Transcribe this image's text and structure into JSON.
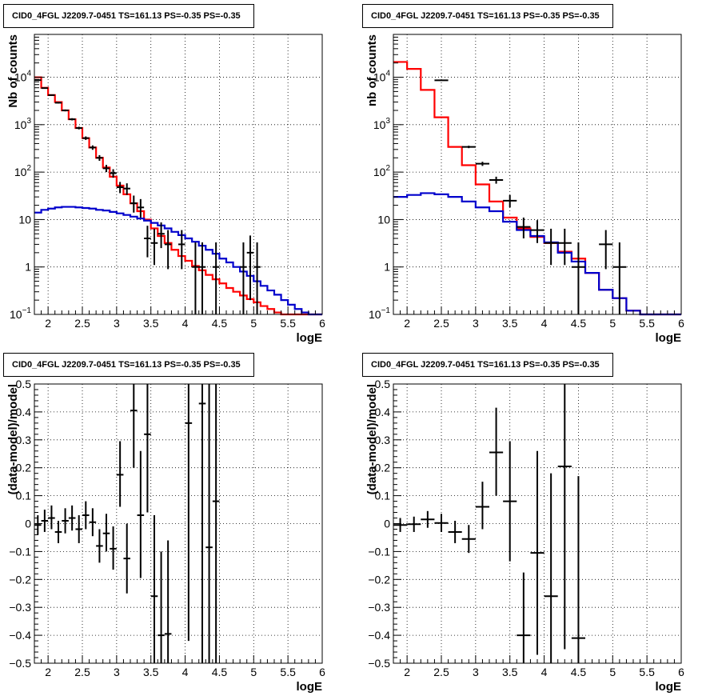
{
  "chart_data": [
    {
      "id": "p1",
      "type": "line",
      "title": "CID0_4FGL J2209.7-0451 TS=161.13 PS=-0.35 PS=-0.35",
      "xlabel": "logE",
      "ylabel": "Nb of counts",
      "log_y": true,
      "xlim": [
        1.8,
        6.0
      ],
      "ylim": [
        0.1,
        80000
      ],
      "x_ticks": [
        "2",
        "2.5",
        "3",
        "3.5",
        "4",
        "4.5",
        "5",
        "5.5",
        "6"
      ],
      "y_ticks": [
        {
          "value": 0.1,
          "base": "10",
          "exp": "−1",
          "label": ""
        },
        {
          "value": 1,
          "base": "",
          "exp": "",
          "label": "1"
        },
        {
          "value": 10,
          "base": "",
          "exp": "",
          "label": "10"
        },
        {
          "value": 100,
          "base": "10",
          "exp": "2",
          "label": ""
        },
        {
          "value": 1000,
          "base": "10",
          "exp": "3",
          "label": ""
        },
        {
          "value": 10000,
          "base": "10",
          "exp": "4",
          "label": ""
        }
      ],
      "grid": true,
      "bin_edges": [
        1.8,
        1.9,
        2.0,
        2.1,
        2.2,
        2.3,
        2.4,
        2.5,
        2.6,
        2.7,
        2.8,
        2.9,
        3.0,
        3.1,
        3.2,
        3.3,
        3.4,
        3.5,
        3.6,
        3.7,
        3.8,
        3.9,
        4.0,
        4.1,
        4.2,
        4.3,
        4.4,
        4.5,
        4.6,
        4.7,
        4.8,
        4.9,
        5.0,
        5.1,
        5.2,
        5.3,
        5.4,
        5.5,
        5.6,
        5.7,
        5.8,
        5.9,
        6.0
      ],
      "series": [
        {
          "color": "#ff0000",
          "values": [
            10000,
            6000,
            4200,
            3000,
            2000,
            1300,
            850,
            520,
            330,
            200,
            125,
            80,
            52,
            34,
            22,
            15,
            10,
            6.5,
            4.5,
            3.2,
            2.3,
            1.7,
            1.35,
            1.05,
            0.85,
            0.68,
            0.55,
            0.45,
            0.36,
            0.3,
            0.25,
            0.21,
            0.18,
            0.15,
            0.13,
            0.11,
            0.1,
            0.1,
            0.1,
            0.1,
            0.1,
            0.1
          ]
        },
        {
          "color": "#0000cc",
          "values": [
            14,
            16,
            17,
            18,
            18.5,
            18.5,
            18,
            17.5,
            17,
            16,
            15.5,
            14.5,
            13.5,
            12.5,
            11.5,
            10.5,
            9.5,
            8.5,
            7.5,
            6.5,
            5.5,
            4.7,
            4.0,
            3.4,
            2.8,
            2.3,
            1.9,
            1.5,
            1.25,
            1.0,
            0.8,
            0.65,
            0.5,
            0.4,
            0.32,
            0.26,
            0.2,
            0.16,
            0.13,
            0.11,
            0.1,
            0.1
          ]
        }
      ],
      "points": [
        {
          "x": 1.85,
          "y": 8700,
          "lo": 8500,
          "hi": 8900
        },
        {
          "x": 1.95,
          "y": 5900,
          "lo": 5750,
          "hi": 6050
        },
        {
          "x": 2.05,
          "y": 4200,
          "lo": 4080,
          "hi": 4330
        },
        {
          "x": 2.15,
          "y": 2900,
          "lo": 2800,
          "hi": 3010
        },
        {
          "x": 2.25,
          "y": 2000,
          "lo": 1910,
          "hi": 2090
        },
        {
          "x": 2.35,
          "y": 1300,
          "lo": 1230,
          "hi": 1370
        },
        {
          "x": 2.45,
          "y": 850,
          "lo": 795,
          "hi": 905
        },
        {
          "x": 2.55,
          "y": 520,
          "lo": 477,
          "hi": 565
        },
        {
          "x": 2.65,
          "y": 330,
          "lo": 295,
          "hi": 366
        },
        {
          "x": 2.75,
          "y": 200,
          "lo": 173,
          "hi": 228
        },
        {
          "x": 2.85,
          "y": 120,
          "lo": 100,
          "hi": 142
        },
        {
          "x": 2.95,
          "y": 95,
          "lo": 76,
          "hi": 115
        },
        {
          "x": 3.05,
          "y": 48,
          "lo": 36,
          "hi": 62
        },
        {
          "x": 3.15,
          "y": 45,
          "lo": 33,
          "hi": 58
        },
        {
          "x": 3.25,
          "y": 22,
          "lo": 14,
          "hi": 32
        },
        {
          "x": 3.35,
          "y": 18,
          "lo": 11,
          "hi": 27
        },
        {
          "x": 3.45,
          "y": 4,
          "lo": 1.6,
          "hi": 7.4
        },
        {
          "x": 3.55,
          "y": 3.2,
          "lo": 1.1,
          "hi": 6.4
        },
        {
          "x": 3.65,
          "y": 5,
          "lo": 2.5,
          "hi": 8.7
        },
        {
          "x": 3.75,
          "y": 3,
          "lo": 0.9,
          "hi": 6.0
        },
        {
          "x": 3.95,
          "y": 3,
          "lo": 0.9,
          "hi": 6.0
        },
        {
          "x": 4.15,
          "y": 1,
          "lo": 0.1,
          "hi": 3.3
        },
        {
          "x": 4.25,
          "y": 1,
          "lo": 0.1,
          "hi": 3.3
        },
        {
          "x": 4.45,
          "y": 1,
          "lo": 0.1,
          "hi": 3.3
        },
        {
          "x": 4.85,
          "y": 1,
          "lo": 0.1,
          "hi": 3.3
        },
        {
          "x": 4.95,
          "y": 2,
          "lo": 0.2,
          "hi": 4.6
        },
        {
          "x": 5.05,
          "y": 1,
          "lo": 0.1,
          "hi": 3.3
        }
      ]
    },
    {
      "id": "p2",
      "type": "line",
      "title": "CID0_4FGL J2209.7-0451 TS=161.13 PS=-0.35 PS=-0.35",
      "xlabel": "logE",
      "ylabel": "nb of counts",
      "log_y": true,
      "xlim": [
        1.8,
        6.0
      ],
      "ylim": [
        0.1,
        80000
      ],
      "x_ticks": [
        "2",
        "2.5",
        "3",
        "3.5",
        "4",
        "4.5",
        "5",
        "5.5",
        "6"
      ],
      "y_ticks": [
        {
          "value": 0.1,
          "base": "10",
          "exp": "−1",
          "label": ""
        },
        {
          "value": 1,
          "base": "",
          "exp": "",
          "label": "1"
        },
        {
          "value": 10,
          "base": "",
          "exp": "",
          "label": "10"
        },
        {
          "value": 100,
          "base": "10",
          "exp": "2",
          "label": ""
        },
        {
          "value": 1000,
          "base": "10",
          "exp": "3",
          "label": ""
        },
        {
          "value": 10000,
          "base": "10",
          "exp": "4",
          "label": ""
        }
      ],
      "grid": true,
      "bin_edges": [
        1.8,
        2.0,
        2.2,
        2.4,
        2.6,
        2.8,
        3.0,
        3.2,
        3.4,
        3.6,
        3.8,
        4.0,
        4.2,
        4.4,
        4.6,
        4.8,
        5.0,
        5.2,
        5.4,
        5.6,
        5.8,
        6.0
      ],
      "series": [
        {
          "color": "#ff0000",
          "values": [
            21000,
            15000,
            5400,
            1430,
            340,
            140,
            55,
            24,
            11,
            6.5,
            4.3,
            3.2,
            2.1,
            1.5,
            0.75,
            0.33,
            0.22,
            0.12,
            0.1,
            0.1,
            0.1
          ]
        },
        {
          "color": "#0000cc",
          "values": [
            30,
            33,
            36,
            34,
            30,
            24,
            18,
            15,
            9,
            6,
            4.5,
            3.3,
            2.0,
            1.3,
            0.75,
            0.33,
            0.22,
            0.12,
            0.1,
            0.1,
            0.1
          ]
        }
      ],
      "points": [
        {
          "x": 2.5,
          "y": 8600,
          "lo": 8400,
          "hi": 8800
        },
        {
          "x": 2.9,
          "y": 340,
          "lo": 320,
          "hi": 360
        },
        {
          "x": 3.1,
          "y": 150,
          "lo": 135,
          "hi": 165
        },
        {
          "x": 3.3,
          "y": 68,
          "lo": 57,
          "hi": 80
        },
        {
          "x": 3.5,
          "y": 25,
          "lo": 18,
          "hi": 33
        },
        {
          "x": 3.7,
          "y": 7,
          "lo": 4,
          "hi": 11
        },
        {
          "x": 3.9,
          "y": 6,
          "lo": 3.2,
          "hi": 9.7
        },
        {
          "x": 4.1,
          "y": 3.2,
          "lo": 1.1,
          "hi": 6.4
        },
        {
          "x": 4.3,
          "y": 3.2,
          "lo": 1.1,
          "hi": 6.4
        },
        {
          "x": 4.5,
          "y": 1,
          "lo": 0.1,
          "hi": 3.3
        },
        {
          "x": 4.9,
          "y": 3,
          "lo": 0.9,
          "hi": 6.0
        },
        {
          "x": 5.1,
          "y": 1,
          "lo": 0.1,
          "hi": 3.3
        }
      ]
    },
    {
      "id": "p3",
      "type": "scatter",
      "title": "CID0_4FGL J2209.7-0451 TS=161.13 PS=-0.35 PS=-0.35",
      "xlabel": "logE",
      "ylabel": "(data-model)/model",
      "log_y": false,
      "xlim": [
        1.8,
        6.0
      ],
      "ylim": [
        -0.5,
        0.5
      ],
      "x_ticks": [
        "2",
        "2.5",
        "3",
        "3.5",
        "4",
        "4.5",
        "5",
        "5.5",
        "6"
      ],
      "y_ticks": [
        {
          "value": -0.5,
          "label": "−0.5"
        },
        {
          "value": -0.4,
          "label": "−0.4"
        },
        {
          "value": -0.3,
          "label": "−0.3"
        },
        {
          "value": -0.2,
          "label": "−0.2"
        },
        {
          "value": -0.1,
          "label": "−0.1"
        },
        {
          "value": 0,
          "label": "0"
        },
        {
          "value": 0.1,
          "label": "0.1"
        },
        {
          "value": 0.2,
          "label": "0.2"
        },
        {
          "value": 0.3,
          "label": "0.3"
        },
        {
          "value": 0.4,
          "label": "0.4"
        },
        {
          "value": 0.5,
          "label": "0.5"
        }
      ],
      "grid": true,
      "points": [
        {
          "x": 1.85,
          "y": -0.005,
          "lo": -0.04,
          "hi": 0.03
        },
        {
          "x": 1.95,
          "y": 0.01,
          "lo": -0.03,
          "hi": 0.05
        },
        {
          "x": 2.05,
          "y": 0.02,
          "lo": -0.02,
          "hi": 0.065
        },
        {
          "x": 2.15,
          "y": -0.03,
          "lo": -0.07,
          "hi": 0.01
        },
        {
          "x": 2.25,
          "y": 0.01,
          "lo": -0.035,
          "hi": 0.055
        },
        {
          "x": 2.35,
          "y": 0.02,
          "lo": -0.025,
          "hi": 0.065
        },
        {
          "x": 2.45,
          "y": -0.02,
          "lo": -0.07,
          "hi": 0.03
        },
        {
          "x": 2.55,
          "y": 0.03,
          "lo": -0.02,
          "hi": 0.08
        },
        {
          "x": 2.65,
          "y": 0.005,
          "lo": -0.045,
          "hi": 0.055
        },
        {
          "x": 2.75,
          "y": -0.08,
          "lo": -0.14,
          "hi": -0.02
        },
        {
          "x": 2.85,
          "y": -0.035,
          "lo": -0.1,
          "hi": 0.035
        },
        {
          "x": 2.95,
          "y": -0.09,
          "lo": -0.165,
          "hi": -0.01
        },
        {
          "x": 3.05,
          "y": 0.175,
          "lo": 0.06,
          "hi": 0.295
        },
        {
          "x": 3.15,
          "y": -0.125,
          "lo": -0.25,
          "hi": 0.0
        },
        {
          "x": 3.25,
          "y": 0.405,
          "lo": 0.2,
          "hi": 0.61
        },
        {
          "x": 3.35,
          "y": 0.03,
          "lo": -0.195,
          "hi": 0.26
        },
        {
          "x": 3.45,
          "y": 0.32,
          "lo": 0.04,
          "hi": 0.6
        },
        {
          "x": 3.55,
          "y": -0.26,
          "lo": -0.55,
          "hi": 0.03
        },
        {
          "x": 3.65,
          "y": -0.4,
          "lo": -0.7,
          "hi": -0.1
        },
        {
          "x": 3.75,
          "y": -0.395,
          "lo": -0.72,
          "hi": -0.06
        },
        {
          "x": 4.05,
          "y": 0.36,
          "lo": -0.42,
          "hi": 1.2
        },
        {
          "x": 4.25,
          "y": 0.43,
          "lo": -0.55,
          "hi": 1.4
        },
        {
          "x": 4.35,
          "y": -0.085,
          "lo": -0.6,
          "hi": 0.8
        },
        {
          "x": 4.45,
          "y": 0.08,
          "lo": -0.6,
          "hi": 1.0
        }
      ]
    },
    {
      "id": "p4",
      "type": "scatter",
      "title": "CID0_4FGL J2209.7-0451 TS=161.13 PS=-0.35 PS=-0.35",
      "xlabel": "logE",
      "ylabel": "(data-model)/model",
      "log_y": false,
      "xlim": [
        1.8,
        6.0
      ],
      "ylim": [
        -0.5,
        0.5
      ],
      "x_ticks": [
        "2",
        "2.5",
        "3",
        "3.5",
        "4",
        "4.5",
        "5",
        "5.5",
        "6"
      ],
      "y_ticks": [
        {
          "value": -0.5,
          "label": "−0.5"
        },
        {
          "value": -0.4,
          "label": "−0.4"
        },
        {
          "value": -0.3,
          "label": "−0.3"
        },
        {
          "value": -0.2,
          "label": "−0.2"
        },
        {
          "value": -0.1,
          "label": "−0.1"
        },
        {
          "value": 0,
          "label": "0"
        },
        {
          "value": 0.1,
          "label": "0.1"
        },
        {
          "value": 0.2,
          "label": "0.2"
        },
        {
          "value": 0.3,
          "label": "0.3"
        },
        {
          "value": 0.4,
          "label": "0.4"
        },
        {
          "value": 0.5,
          "label": "0.5"
        }
      ],
      "grid": true,
      "points": [
        {
          "x": 1.9,
          "y": -0.005,
          "lo": -0.03,
          "hi": 0.02
        },
        {
          "x": 2.1,
          "y": -0.002,
          "lo": -0.03,
          "hi": 0.025
        },
        {
          "x": 2.3,
          "y": 0.015,
          "lo": -0.015,
          "hi": 0.045
        },
        {
          "x": 2.5,
          "y": 0.002,
          "lo": -0.03,
          "hi": 0.035
        },
        {
          "x": 2.7,
          "y": -0.03,
          "lo": -0.07,
          "hi": 0.01
        },
        {
          "x": 2.9,
          "y": -0.055,
          "lo": -0.105,
          "hi": -0.005
        },
        {
          "x": 3.1,
          "y": 0.06,
          "lo": -0.02,
          "hi": 0.15
        },
        {
          "x": 3.3,
          "y": 0.255,
          "lo": 0.1,
          "hi": 0.415
        },
        {
          "x": 3.5,
          "y": 0.08,
          "lo": -0.135,
          "hi": 0.295
        },
        {
          "x": 3.7,
          "y": -0.4,
          "lo": -0.68,
          "hi": -0.175
        },
        {
          "x": 3.9,
          "y": -0.105,
          "lo": -0.47,
          "hi": 0.26
        },
        {
          "x": 4.1,
          "y": -0.26,
          "lo": -0.7,
          "hi": 0.18
        },
        {
          "x": 4.3,
          "y": 0.205,
          "lo": -0.45,
          "hi": 0.86
        },
        {
          "x": 4.5,
          "y": -0.41,
          "lo": -1.0,
          "hi": 0.17
        }
      ]
    }
  ]
}
